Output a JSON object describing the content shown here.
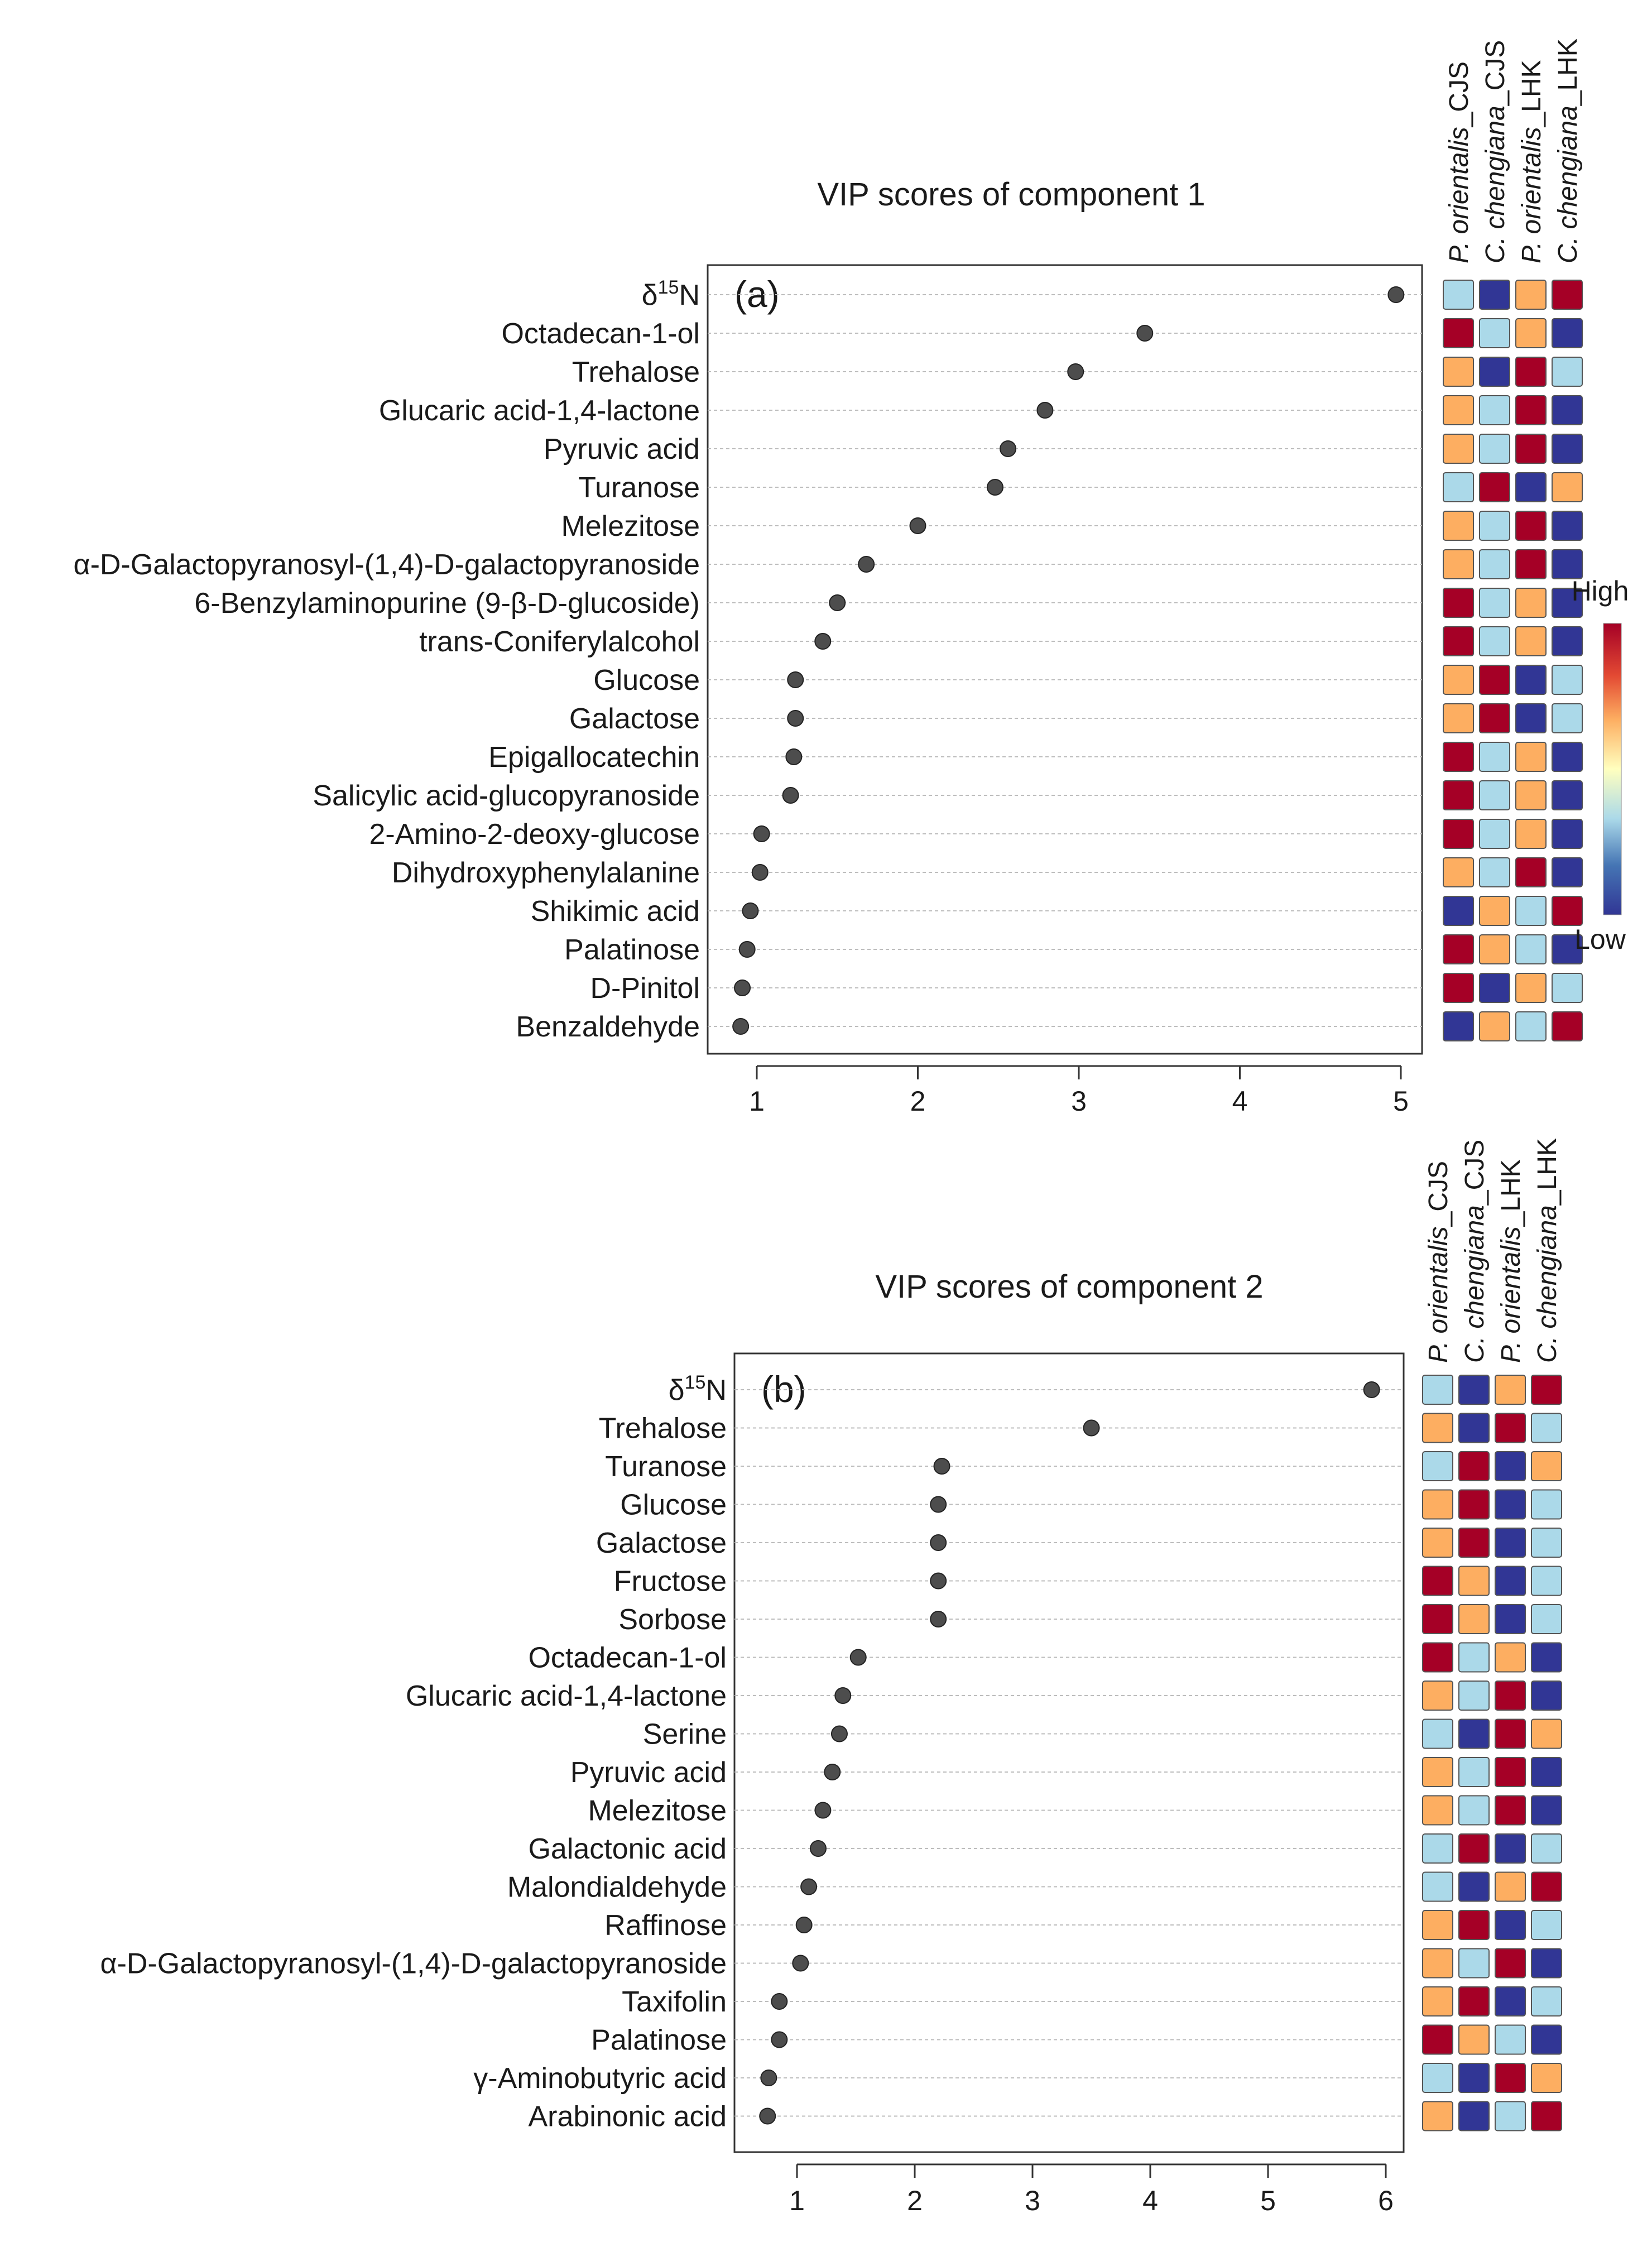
{
  "figure": {
    "heat_legend": {
      "high_label": "High",
      "low_label": "Low"
    },
    "palette": {
      "High": "#a50026",
      "Mid-high": "#fdae61",
      "Mid-low": "#abd9e9",
      "Low": "#313695",
      "dot": "#4d4d4d",
      "gridline": "#bdbdbd"
    },
    "groups": [
      {
        "label": "P. orientalis_CJS",
        "italic": "P. orientalis",
        "suffix": "_CJS"
      },
      {
        "label": "C. chengiana_CJS",
        "italic": "C. chengiana",
        "suffix": "_CJS"
      },
      {
        "label": "P. orientalis_LHK",
        "italic": "P. orientalis",
        "suffix": "_LHK"
      },
      {
        "label": "C. chengiana_LHK",
        "italic": "C. chengiana",
        "suffix": "_LHK"
      }
    ]
  },
  "chart_data": [
    {
      "type": "scatter",
      "panel_label": "(a)",
      "title": "VIP scores of component 1",
      "xlabel": "",
      "ylabel": "",
      "xlim": [
        0.7,
        5.1
      ],
      "xticks": [
        1,
        2,
        3,
        4,
        5
      ],
      "grid": "horizontal dashed",
      "features": [
        {
          "name": "δ15N",
          "vip": 4.97,
          "heat": [
            "Mid-low",
            "Low",
            "Mid-high",
            "High"
          ]
        },
        {
          "name": "Octadecan-1-ol",
          "vip": 3.41,
          "heat": [
            "High",
            "Mid-low",
            "Mid-high",
            "Low"
          ]
        },
        {
          "name": "Trehalose",
          "vip": 2.98,
          "heat": [
            "Mid-high",
            "Low",
            "High",
            "Mid-low"
          ]
        },
        {
          "name": "Glucaric acid-1,4-lactone",
          "vip": 2.79,
          "heat": [
            "Mid-high",
            "Mid-low",
            "High",
            "Low"
          ]
        },
        {
          "name": "Pyruvic acid",
          "vip": 2.56,
          "heat": [
            "Mid-high",
            "Mid-low",
            "High",
            "Low"
          ]
        },
        {
          "name": "Turanose",
          "vip": 2.48,
          "heat": [
            "Mid-low",
            "High",
            "Low",
            "Mid-high"
          ]
        },
        {
          "name": "Melezitose",
          "vip": 2.0,
          "heat": [
            "Mid-high",
            "Mid-low",
            "High",
            "Low"
          ]
        },
        {
          "name": "α-D-Galactopyranosyl-(1,4)-D-galactopyranoside",
          "vip": 1.68,
          "heat": [
            "Mid-high",
            "Mid-low",
            "High",
            "Low"
          ]
        },
        {
          "name": "6-Benzylaminopurine (9-β-D-glucoside)",
          "vip": 1.5,
          "heat": [
            "High",
            "Mid-low",
            "Mid-high",
            "Low"
          ]
        },
        {
          "name": "trans-Coniferylalcohol",
          "vip": 1.41,
          "heat": [
            "High",
            "Mid-low",
            "Mid-high",
            "Low"
          ]
        },
        {
          "name": "Glucose",
          "vip": 1.24,
          "heat": [
            "Mid-high",
            "High",
            "Low",
            "Mid-low"
          ]
        },
        {
          "name": "Galactose",
          "vip": 1.24,
          "heat": [
            "Mid-high",
            "High",
            "Low",
            "Mid-low"
          ]
        },
        {
          "name": "Epigallocatechin",
          "vip": 1.23,
          "heat": [
            "High",
            "Mid-low",
            "Mid-high",
            "Low"
          ]
        },
        {
          "name": "Salicylic acid-glucopyranoside",
          "vip": 1.21,
          "heat": [
            "High",
            "Mid-low",
            "Mid-high",
            "Low"
          ]
        },
        {
          "name": "2-Amino-2-deoxy-glucose",
          "vip": 1.03,
          "heat": [
            "High",
            "Mid-low",
            "Mid-high",
            "Low"
          ]
        },
        {
          "name": "Dihydroxyphenylalanine",
          "vip": 1.02,
          "heat": [
            "Mid-high",
            "Mid-low",
            "High",
            "Low"
          ]
        },
        {
          "name": "Shikimic acid",
          "vip": 0.96,
          "heat": [
            "Low",
            "Mid-high",
            "Mid-low",
            "High"
          ]
        },
        {
          "name": "Palatinose",
          "vip": 0.94,
          "heat": [
            "High",
            "Mid-high",
            "Mid-low",
            "Low"
          ]
        },
        {
          "name": "D-Pinitol",
          "vip": 0.91,
          "heat": [
            "High",
            "Low",
            "Mid-high",
            "Mid-low"
          ]
        },
        {
          "name": "Benzaldehyde",
          "vip": 0.9,
          "heat": [
            "Low",
            "Mid-high",
            "Mid-low",
            "High"
          ]
        }
      ]
    },
    {
      "type": "scatter",
      "panel_label": "(b)",
      "title": "VIP scores of component 2",
      "xlabel": "",
      "ylabel": "",
      "xlim": [
        0.5,
        6.1
      ],
      "xticks": [
        1,
        2,
        3,
        4,
        5,
        6
      ],
      "grid": "horizontal dashed",
      "features": [
        {
          "name": "δ15N",
          "vip": 5.88,
          "heat": [
            "Mid-low",
            "Low",
            "Mid-high",
            "High"
          ]
        },
        {
          "name": "Trehalose",
          "vip": 3.5,
          "heat": [
            "Mid-high",
            "Low",
            "High",
            "Mid-low"
          ]
        },
        {
          "name": "Turanose",
          "vip": 2.23,
          "heat": [
            "Mid-low",
            "High",
            "Low",
            "Mid-high"
          ]
        },
        {
          "name": "Glucose",
          "vip": 2.2,
          "heat": [
            "Mid-high",
            "High",
            "Low",
            "Mid-low"
          ]
        },
        {
          "name": "Galactose",
          "vip": 2.2,
          "heat": [
            "Mid-high",
            "High",
            "Low",
            "Mid-low"
          ]
        },
        {
          "name": "Fructose",
          "vip": 2.2,
          "heat": [
            "High",
            "Mid-high",
            "Low",
            "Mid-low"
          ]
        },
        {
          "name": "Sorbose",
          "vip": 2.2,
          "heat": [
            "High",
            "Mid-high",
            "Low",
            "Mid-low"
          ]
        },
        {
          "name": "Octadecan-1-ol",
          "vip": 1.52,
          "heat": [
            "High",
            "Mid-low",
            "Mid-high",
            "Low"
          ]
        },
        {
          "name": "Glucaric acid-1,4-lactone",
          "vip": 1.39,
          "heat": [
            "Mid-high",
            "Mid-low",
            "High",
            "Low"
          ]
        },
        {
          "name": "Serine",
          "vip": 1.36,
          "heat": [
            "Mid-low",
            "Low",
            "High",
            "Mid-high"
          ]
        },
        {
          "name": "Pyruvic acid",
          "vip": 1.3,
          "heat": [
            "Mid-high",
            "Mid-low",
            "High",
            "Low"
          ]
        },
        {
          "name": "Melezitose",
          "vip": 1.22,
          "heat": [
            "Mid-high",
            "Mid-low",
            "High",
            "Low"
          ]
        },
        {
          "name": "Galactonic acid",
          "vip": 1.18,
          "heat": [
            "Mid-low",
            "High",
            "Low",
            "Mid-low"
          ]
        },
        {
          "name": "Malondialdehyde",
          "vip": 1.1,
          "heat": [
            "Mid-low",
            "Low",
            "Mid-high",
            "High"
          ]
        },
        {
          "name": "Raffinose",
          "vip": 1.06,
          "heat": [
            "Mid-high",
            "High",
            "Low",
            "Mid-low"
          ]
        },
        {
          "name": "α-D-Galactopyranosyl-(1,4)-D-galactopyranoside",
          "vip": 1.03,
          "heat": [
            "Mid-high",
            "Mid-low",
            "High",
            "Low"
          ]
        },
        {
          "name": "Taxifolin",
          "vip": 0.85,
          "heat": [
            "Mid-high",
            "High",
            "Low",
            "Mid-low"
          ]
        },
        {
          "name": "Palatinose",
          "vip": 0.85,
          "heat": [
            "High",
            "Mid-high",
            "Mid-low",
            "Low"
          ]
        },
        {
          "name": "γ-Aminobutyric acid",
          "vip": 0.76,
          "heat": [
            "Mid-low",
            "Low",
            "High",
            "Mid-high"
          ]
        },
        {
          "name": "Arabinonic acid",
          "vip": 0.75,
          "heat": [
            "Mid-high",
            "Low",
            "Mid-low",
            "High"
          ]
        }
      ]
    }
  ]
}
